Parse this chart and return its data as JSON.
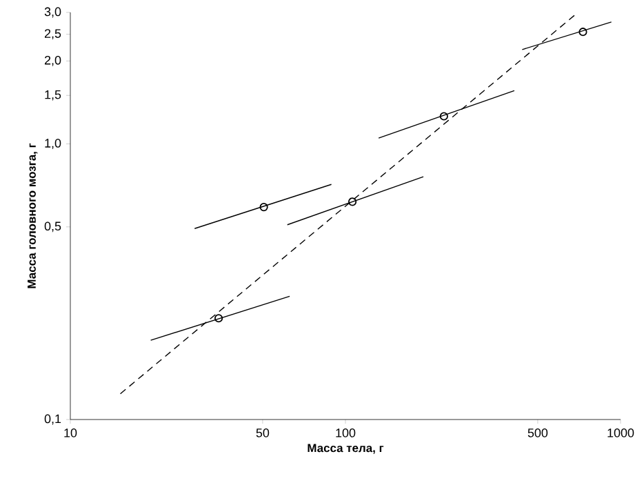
{
  "chart_data": {
    "type": "line",
    "xlabel": "Масса тела, г",
    "ylabel": "Масса головного мозга, г",
    "log": "xy",
    "xlim": [
      10,
      1000
    ],
    "ylim": [
      0.1,
      3.0
    ],
    "xticks": [
      10,
      50,
      100,
      500,
      1000
    ],
    "yticks": [
      {
        "value": 0.1,
        "label": "0,1"
      },
      {
        "value": 0.5,
        "label": "0,5"
      },
      {
        "value": 1.0,
        "label": "1,0"
      },
      {
        "value": 1.5,
        "label": "1,5"
      },
      {
        "value": 2.0,
        "label": "2,0"
      },
      {
        "value": 2.5,
        "label": "2,5"
      },
      {
        "value": 3.0,
        "label": "3,0"
      }
    ],
    "series": [
      {
        "color": "#000000",
        "line_style": "dashed",
        "marker": "none",
        "x": [
          15.2,
          689
        ],
        "values": [
          0.124,
          2.96
        ]
      },
      {
        "color": "#000000",
        "line_style": "solid",
        "marker": "none",
        "x": [
          19.6,
          62.7
        ],
        "values": [
          0.194,
          0.28
        ]
      },
      {
        "color": "#000000",
        "line_style": "solid",
        "marker": "none",
        "x": [
          28.3,
          88.9
        ],
        "values": [
          0.493,
          0.713
        ]
      },
      {
        "color": "#000000",
        "line_style": "solid",
        "marker": "none",
        "x": [
          61.5,
          192
        ],
        "values": [
          0.509,
          0.76
        ]
      },
      {
        "color": "#000000",
        "line_style": "solid",
        "marker": "none",
        "x": [
          132,
          411
        ],
        "values": [
          1.05,
          1.56
        ]
      },
      {
        "color": "#000000",
        "line_style": "solid",
        "marker": "none",
        "x": [
          439,
          926
        ],
        "values": [
          2.2,
          2.77
        ]
      },
      {
        "type": "scatter",
        "color": "#000000",
        "marker": "circle",
        "x": [
          34.6,
          50.5,
          106,
          228,
          730
        ],
        "values": [
          0.233,
          0.59,
          0.617,
          1.26,
          2.55
        ]
      }
    ]
  }
}
